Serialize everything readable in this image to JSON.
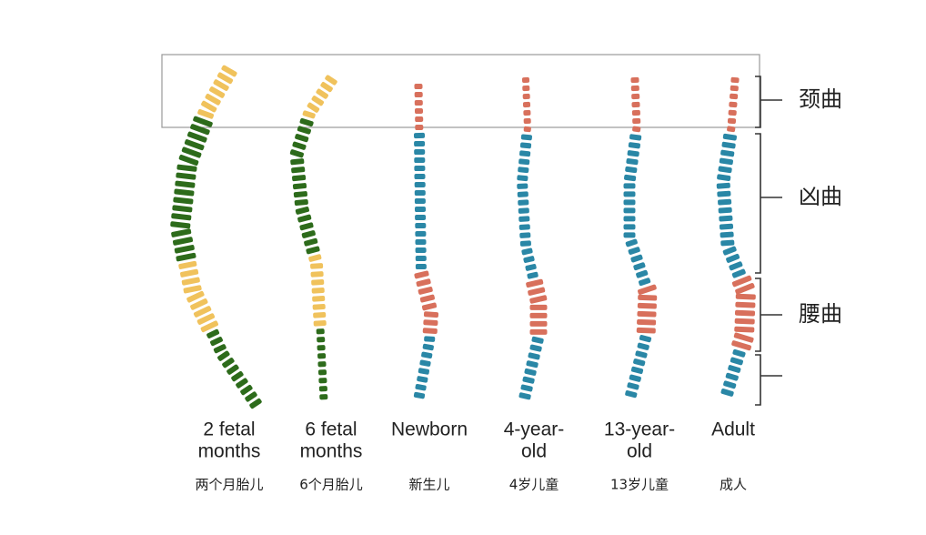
{
  "columns": [
    {
      "label": [
        "2  fetal",
        "months"
      ],
      "label_zh": "两个月胎儿"
    },
    {
      "label": [
        "6  fetal",
        "months"
      ],
      "label_zh": "6个月胎儿"
    },
    {
      "label": [
        "Newborn"
      ],
      "label_zh": "新生儿"
    },
    {
      "label": [
        "4-year-",
        "old"
      ],
      "label_zh": "4岁儿童"
    },
    {
      "label": [
        "13-year-",
        "old"
      ],
      "label_zh": "13岁儿童"
    },
    {
      "label": [
        "Adult"
      ],
      "label_zh": "成人"
    }
  ],
  "regions": [
    "颈曲",
    "凶曲",
    "腰曲"
  ]
}
